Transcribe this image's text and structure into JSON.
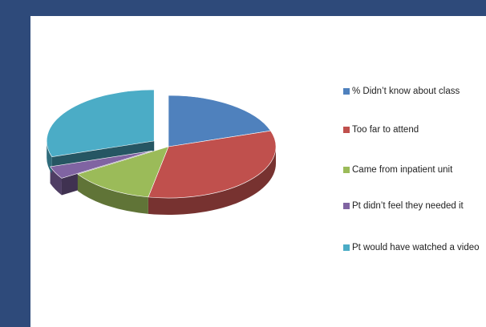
{
  "chart_data": {
    "type": "pie",
    "title": "",
    "legend_position": "right",
    "slices": [
      {
        "label": "% Didn’t know about class",
        "value": 20,
        "color": "#4f81bd",
        "exploded": false
      },
      {
        "label": "Too far to attend",
        "value": 33,
        "color": "#c0504d",
        "exploded": false
      },
      {
        "label": "Came from inpatient unit",
        "value": 13,
        "color": "#9bbb59",
        "exploded": false
      },
      {
        "label": "Pt didn’t feel they needed it",
        "value": 4,
        "color": "#8064a2",
        "exploded": true
      },
      {
        "label": "Pt would have watched a video",
        "value": 30,
        "color": "#4bacc6",
        "exploded": true
      }
    ]
  }
}
